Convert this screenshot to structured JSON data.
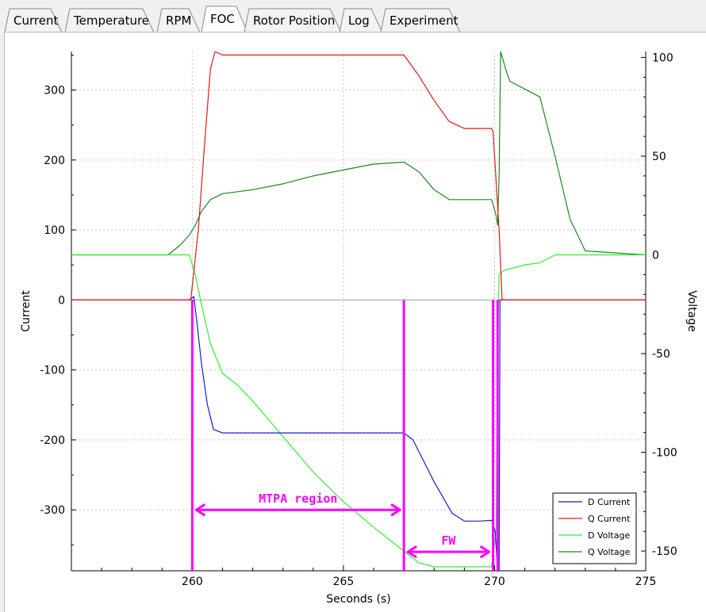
{
  "tabs": [
    {
      "label": "Current",
      "id": "current"
    },
    {
      "label": "Temperature",
      "id": "temperature"
    },
    {
      "label": "RPM",
      "id": "rpm"
    },
    {
      "label": "FOC",
      "id": "foc",
      "active": true
    },
    {
      "label": "Rotor Position",
      "id": "rotor-position"
    },
    {
      "label": "Log",
      "id": "log"
    },
    {
      "label": "Experiment",
      "id": "experiment"
    }
  ],
  "colors": {
    "d_current": "#1a1acd",
    "q_current": "#e01a1a",
    "d_voltage": "#33ee33",
    "q_voltage": "#1a8a1a",
    "annotation": "#ff00ff",
    "zero_line": "#a0a0a0",
    "grid": "#c8c8c8"
  },
  "chart_data": {
    "type": "line",
    "xlabel": "Seconds (s)",
    "ylabel_left": "Current",
    "ylabel_right": "Voltage",
    "xlim": [
      256,
      275
    ],
    "ylim_left": [
      -387,
      355
    ],
    "ylim_right": [
      -160,
      103
    ],
    "x_ticks": [
      260,
      265,
      270,
      275
    ],
    "y_ticks_left": [
      300,
      200,
      100,
      0,
      -100,
      -200,
      -300
    ],
    "y_ticks_right": [
      100,
      50,
      0,
      -50,
      -100,
      -150
    ],
    "grid": true,
    "legend_position": "bottom-right",
    "series": [
      {
        "name": "D Current",
        "axis": "left",
        "x": [
          256,
          259.9,
          260.05,
          260.15,
          260.3,
          260.5,
          260.7,
          261,
          263,
          265,
          267,
          267.3,
          268,
          268.6,
          269,
          269.5,
          269.9,
          270.02,
          270.1,
          270.15,
          270.18,
          275
        ],
        "y": [
          0,
          0,
          5,
          -30,
          -90,
          -150,
          -185,
          -190,
          -190,
          -190,
          -190,
          -200,
          -260,
          -305,
          -316,
          -316,
          -315,
          -330,
          -387,
          -387,
          0,
          0
        ]
      },
      {
        "name": "Q Current",
        "axis": "left",
        "x": [
          256,
          259.95,
          260.2,
          260.4,
          260.6,
          260.75,
          261,
          263,
          265,
          266.5,
          267,
          267.5,
          268,
          268.5,
          269,
          269.5,
          269.9,
          269.95,
          270.15,
          270.25,
          275
        ],
        "y": [
          0,
          0,
          100,
          220,
          330,
          355,
          350,
          350,
          350,
          350,
          350,
          320,
          285,
          255,
          245,
          245,
          245,
          240,
          100,
          0,
          0
        ]
      },
      {
        "name": "D Voltage",
        "axis": "right",
        "x": [
          256,
          259.2,
          259.9,
          260.1,
          260.3,
          260.6,
          261,
          261.5,
          262,
          263,
          264,
          265,
          266,
          267,
          267.5,
          268,
          268.5,
          269,
          269.9,
          270.05,
          270.1,
          270.15,
          270.3,
          271,
          271.5,
          272,
          273,
          275
        ],
        "y": [
          0,
          0,
          0,
          -10,
          -25,
          -45,
          -60,
          -66,
          -74,
          -92,
          -110,
          -125,
          -138,
          -150,
          -156,
          -158,
          -158,
          -158,
          -158,
          -140,
          -50,
          -10,
          -8,
          -5,
          -4,
          0,
          0,
          0
        ]
      },
      {
        "name": "Q Voltage",
        "axis": "right",
        "x": [
          256,
          259.2,
          259.6,
          259.9,
          260.1,
          260.3,
          260.6,
          261,
          261.5,
          262,
          263,
          264,
          265,
          266,
          267,
          267.5,
          268,
          268.5,
          269,
          269.9,
          270.05,
          270.1,
          270.15,
          270.2,
          270.35,
          270.5,
          271,
          271.5,
          272,
          272.5,
          273,
          275
        ],
        "y": [
          0,
          0,
          5,
          10,
          15,
          22,
          28,
          31,
          32,
          33,
          36,
          40,
          43,
          46,
          47,
          42,
          33,
          28,
          28,
          28,
          20,
          15,
          40,
          103,
          95,
          88,
          84,
          80,
          50,
          18,
          2,
          0
        ]
      }
    ],
    "annotations": [
      {
        "type": "vline",
        "x": 260
      },
      {
        "type": "vline",
        "x": 267
      },
      {
        "type": "vline",
        "x": 269.95
      },
      {
        "type": "vline",
        "x": 270.1
      },
      {
        "type": "arrow",
        "label": "MTPA region",
        "x_from": 260,
        "x_to": 267,
        "y": -300
      },
      {
        "type": "arrow",
        "label": "FW",
        "x_from": 267,
        "x_to": 269.95,
        "y": -360
      }
    ]
  }
}
